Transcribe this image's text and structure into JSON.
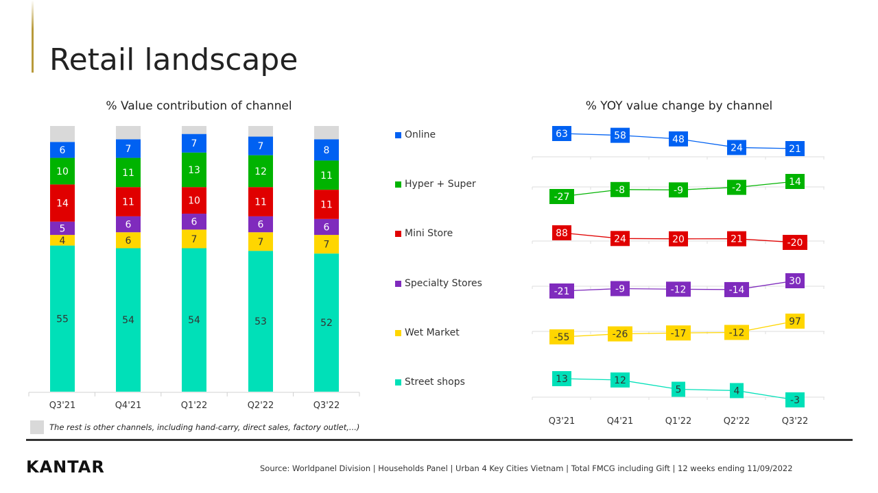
{
  "title": "Retail landscape",
  "brand": "KANTAR",
  "note": "The rest is other channels, including hand-carry, direct sales, factory outlet,...)",
  "source": "Source:  Worldpanel  Division  | Households  Panel | Urban  4 Key Cities Vietnam   | Total FMCG including  Gift | 12 weeks  ending  11/09/2022",
  "legend": [
    {
      "name": "Online",
      "color": "#0061f2"
    },
    {
      "name": "Hyper + Super",
      "color": "#00b300"
    },
    {
      "name": "Mini Store",
      "color": "#e00000"
    },
    {
      "name": "Specialty Stores",
      "color": "#7f2bbd"
    },
    {
      "name": "Wet Market",
      "color": "#ffd600"
    },
    {
      "name": "Street shops",
      "color": "#00e0b8"
    }
  ],
  "chart_data": [
    {
      "type": "bar",
      "stacked": true,
      "title": "% Value contribution of channel",
      "categories": [
        "Q3'21",
        "Q4'21",
        "Q1'22",
        "Q2'22",
        "Q3'22"
      ],
      "ylim": [
        0,
        100
      ],
      "series": [
        {
          "name": "Street shops",
          "color": "#00e0b8",
          "values": [
            55,
            54,
            54,
            53,
            52
          ]
        },
        {
          "name": "Wet Market",
          "color": "#ffd600",
          "values": [
            4,
            6,
            7,
            7,
            7
          ]
        },
        {
          "name": "Specialty Stores",
          "color": "#7f2bbd",
          "values": [
            5,
            6,
            6,
            6,
            6
          ]
        },
        {
          "name": "Mini Store",
          "color": "#e00000",
          "values": [
            14,
            11,
            10,
            11,
            11
          ]
        },
        {
          "name": "Hyper + Super",
          "color": "#00b300",
          "values": [
            10,
            11,
            13,
            12,
            11
          ]
        },
        {
          "name": "Online",
          "color": "#0061f2",
          "values": [
            6,
            7,
            7,
            7,
            8
          ]
        },
        {
          "name": "The rest",
          "color": "#d9d9d9",
          "values": [
            6,
            5,
            3,
            4,
            5
          ]
        }
      ]
    },
    {
      "type": "line",
      "title": "% YOY value change by channel",
      "categories": [
        "Q3'21",
        "Q4'21",
        "Q1'22",
        "Q2'22",
        "Q3'22"
      ],
      "series": [
        {
          "name": "Online",
          "color": "#0061f2",
          "values": [
            63,
            58,
            48,
            24,
            21
          ]
        },
        {
          "name": "Hyper + Super",
          "color": "#00b300",
          "values": [
            -27,
            -8,
            -9,
            -2,
            14
          ]
        },
        {
          "name": "Mini Store",
          "color": "#e00000",
          "values": [
            88,
            24,
            20,
            21,
            -20
          ]
        },
        {
          "name": "Specialty Stores",
          "color": "#7f2bbd",
          "values": [
            -21,
            -9,
            -12,
            -14,
            30
          ]
        },
        {
          "name": "Wet Market",
          "color": "#ffd600",
          "values": [
            -55,
            -26,
            -17,
            -12,
            97
          ]
        },
        {
          "name": "Street shops",
          "color": "#00e0b8",
          "values": [
            13,
            12,
            5,
            4,
            -3
          ]
        }
      ]
    }
  ]
}
